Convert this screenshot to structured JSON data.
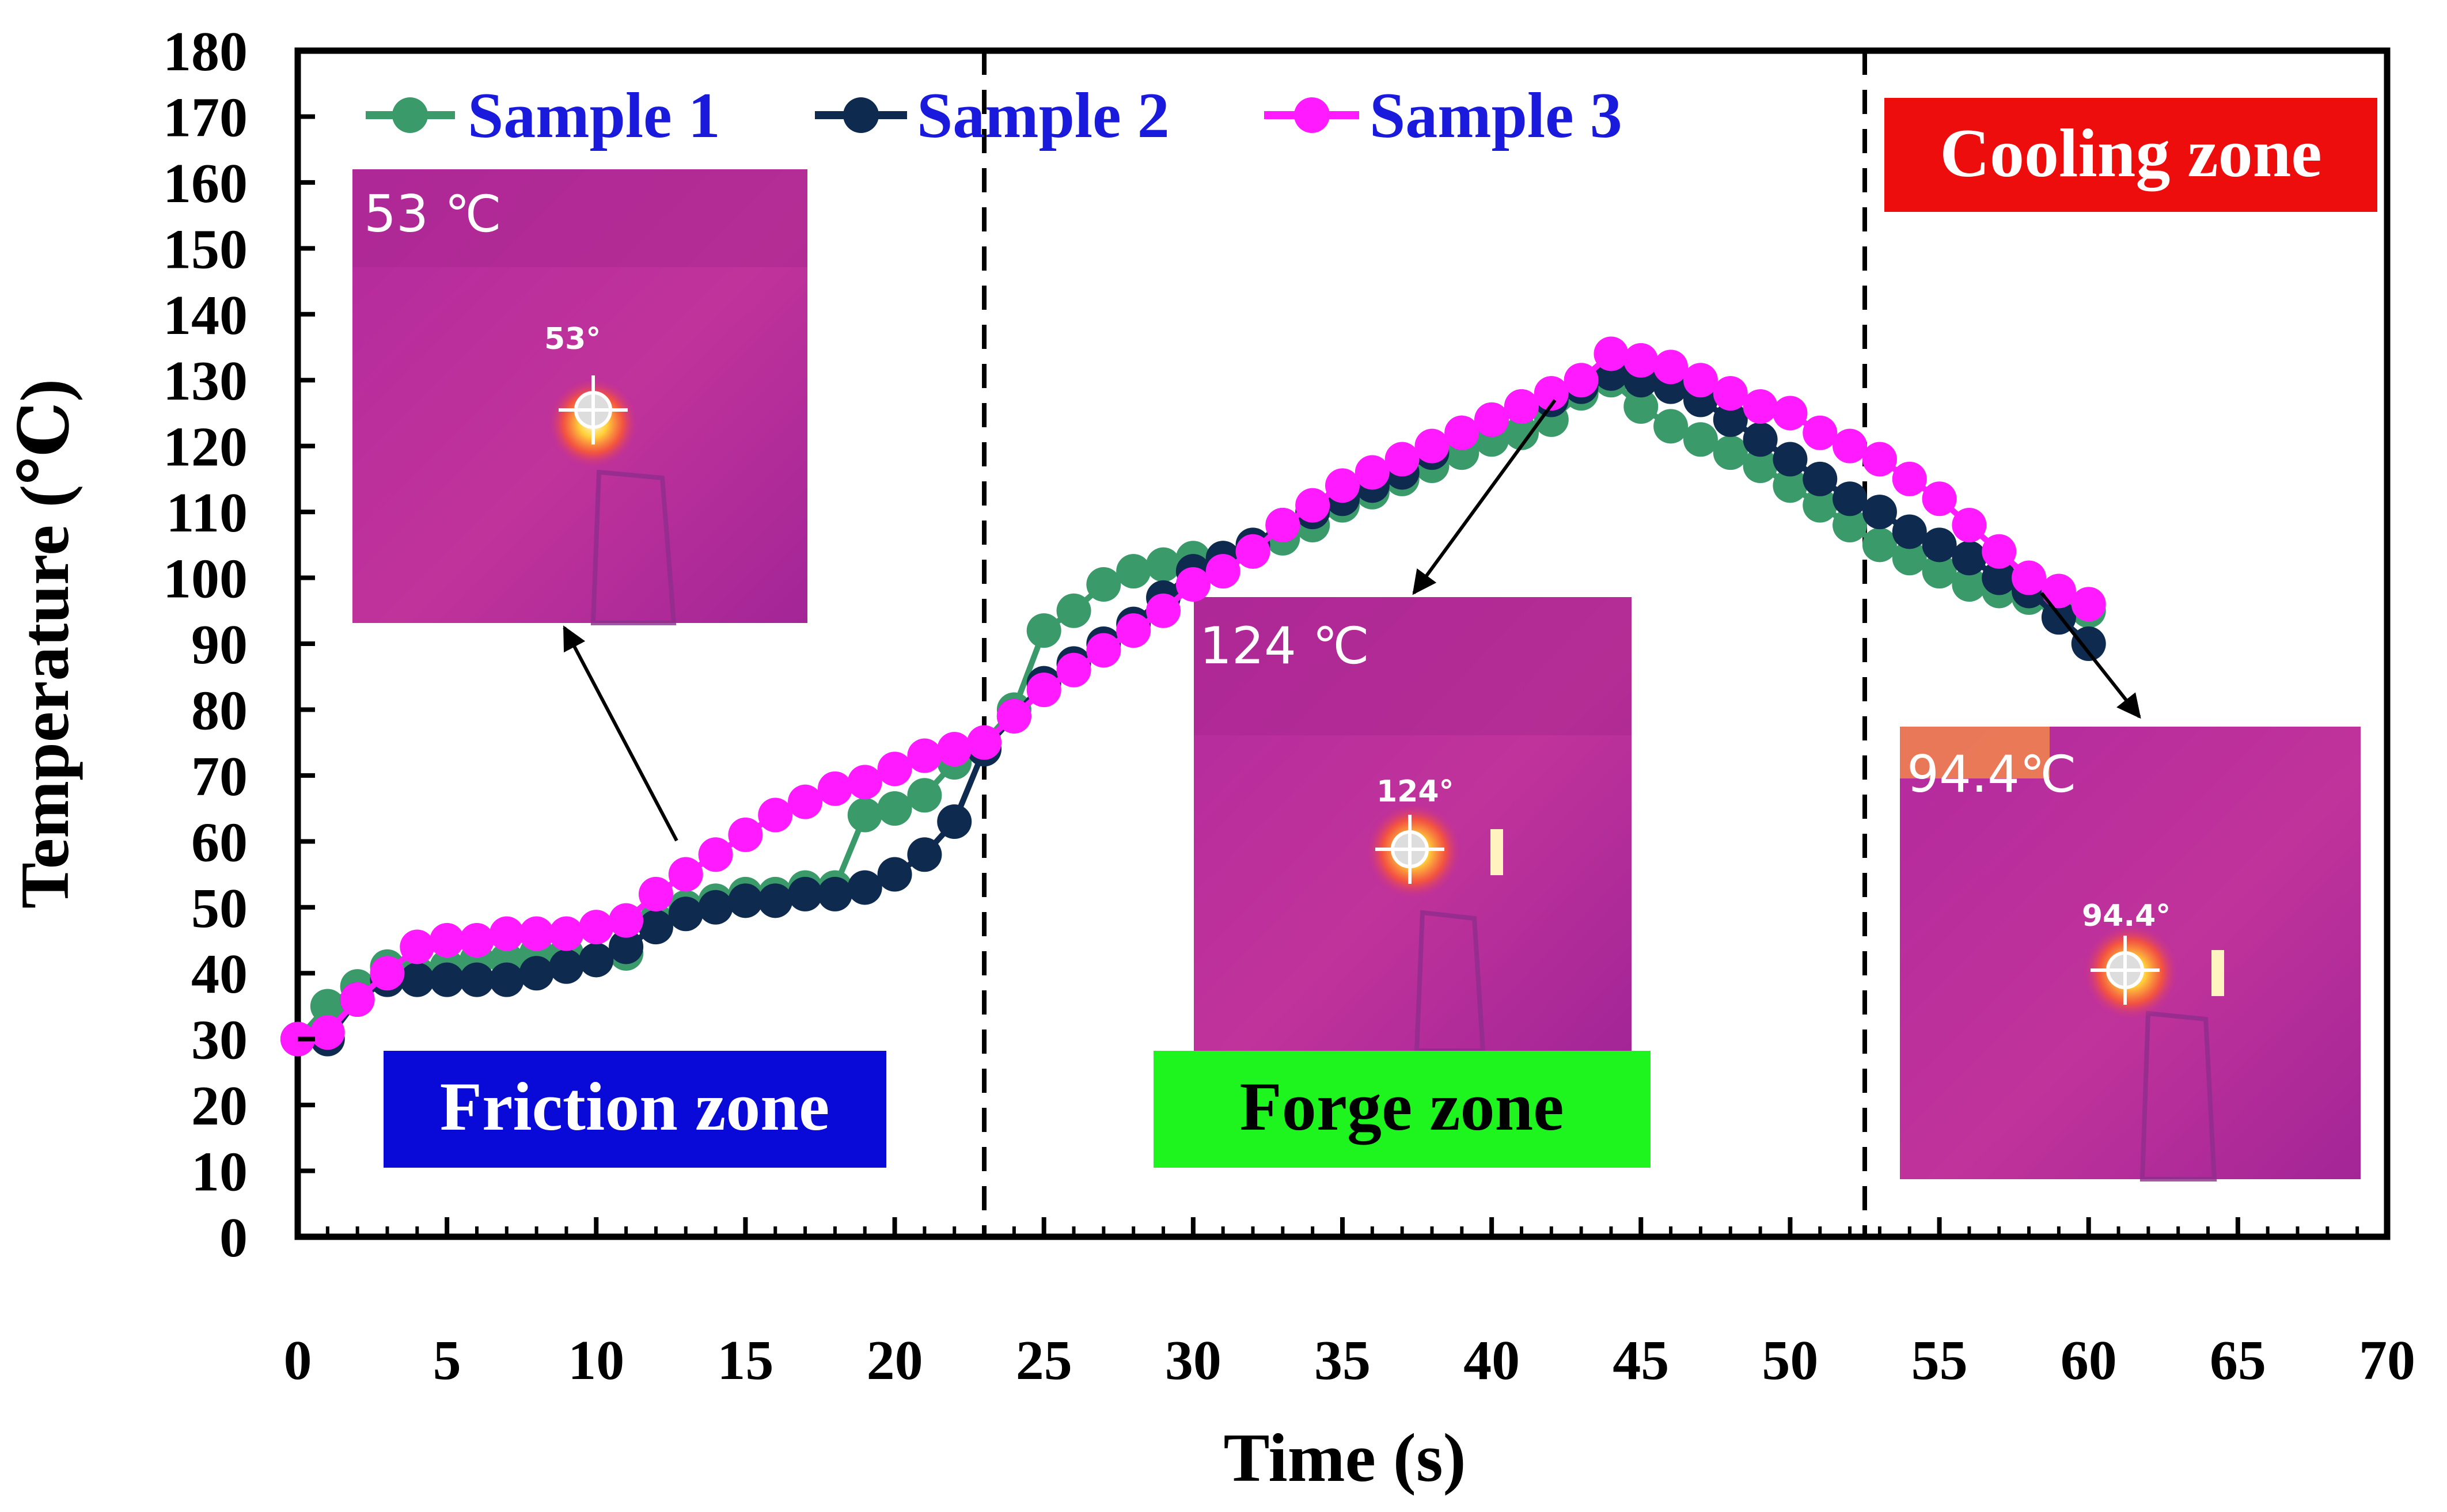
{
  "chart_data": {
    "type": "line",
    "xlabel": "Time (s)",
    "ylabel": "Temperature (℃)",
    "xlim": [
      0,
      70
    ],
    "ylim": [
      0,
      180
    ],
    "xticks": [
      "0",
      "5",
      "10",
      "15",
      "20",
      "25",
      "30",
      "35",
      "40",
      "45",
      "50",
      "55",
      "60",
      "65",
      "70"
    ],
    "yticks": [
      "0",
      "10",
      "20",
      "30",
      "40",
      "50",
      "60",
      "70",
      "80",
      "90",
      "100",
      "110",
      "120",
      "130",
      "140",
      "150",
      "160",
      "170",
      "180"
    ],
    "grid": false,
    "legend_position": "top-left",
    "x": [
      0,
      1,
      2,
      3,
      4,
      5,
      6,
      7,
      8,
      9,
      10,
      11,
      12,
      13,
      14,
      15,
      16,
      17,
      18,
      19,
      20,
      21,
      22,
      23,
      24,
      25,
      26,
      27,
      28,
      29,
      30,
      31,
      32,
      33,
      34,
      35,
      36,
      37,
      38,
      39,
      40,
      41,
      42,
      43,
      44,
      45,
      46,
      47,
      48,
      49,
      50,
      51,
      52,
      53,
      54,
      55,
      56,
      57,
      58,
      59,
      60
    ],
    "series": [
      {
        "name": "Sample 1",
        "color": "#3a9a6a",
        "values": [
          30,
          35,
          38,
          41,
          40,
          41,
          42,
          42,
          43,
          43,
          42,
          43,
          48,
          50,
          51,
          52,
          52,
          53,
          53,
          64,
          65,
          67,
          72,
          75,
          80,
          92,
          95,
          99,
          101,
          102,
          103,
          103,
          104,
          106,
          108,
          111,
          113,
          115,
          117,
          119,
          121,
          122,
          124,
          128,
          130,
          126,
          123,
          121,
          119,
          117,
          114,
          111,
          108,
          105,
          103,
          101,
          99,
          98,
          97,
          96,
          95
        ]
      },
      {
        "name": "Sample 2",
        "color": "#0e2a4e",
        "values": [
          30,
          30,
          36,
          39,
          39,
          39,
          39,
          39,
          40,
          41,
          42,
          44,
          47,
          49,
          50,
          51,
          51,
          52,
          52,
          53,
          55,
          58,
          63,
          74,
          79,
          84,
          87,
          90,
          93,
          97,
          101,
          103,
          105,
          108,
          110,
          112,
          114,
          116,
          119,
          122,
          124,
          126,
          127,
          129,
          131,
          130,
          129,
          127,
          124,
          121,
          118,
          115,
          112,
          110,
          107,
          105,
          103,
          100,
          98,
          94,
          90
        ]
      },
      {
        "name": "Sample 3",
        "color": "#ff1aff",
        "values": [
          30,
          31,
          36,
          40,
          44,
          45,
          45,
          46,
          46,
          46,
          47,
          48,
          52,
          55,
          58,
          61,
          64,
          66,
          68,
          69,
          71,
          73,
          74,
          75,
          79,
          83,
          86,
          89,
          92,
          95,
          99,
          101,
          104,
          108,
          111,
          114,
          116,
          118,
          120,
          122,
          124,
          126,
          128,
          130,
          134,
          133,
          132,
          130,
          128,
          126,
          125,
          122,
          120,
          118,
          115,
          112,
          108,
          104,
          100,
          98,
          96
        ]
      }
    ],
    "dividers_x": [
      23,
      52.5
    ],
    "zones": [
      {
        "label": "Friction zone",
        "bg": "#0a0ad8",
        "fg": "#ffffff"
      },
      {
        "label": "Forge zone",
        "bg": "#1ef51e",
        "fg": "#000000"
      },
      {
        "label": "Cooling zone",
        "bg": "#ee0d0d",
        "fg": "#ffffff"
      }
    ],
    "insets": [
      {
        "temp_label": "53 ℃",
        "marker_label": "53°",
        "arrow_to": [
          13,
          54
        ]
      },
      {
        "temp_label": "124 ℃",
        "marker_label": "124°",
        "arrow_to": [
          43,
          124
        ]
      },
      {
        "temp_label": "94.4℃",
        "marker_label": "94.4°",
        "arrow_to": [
          60,
          96
        ]
      }
    ]
  }
}
